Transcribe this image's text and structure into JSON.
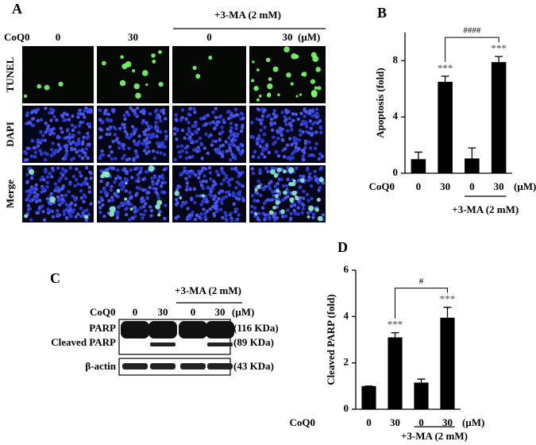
{
  "panel_a": {
    "label": "A",
    "dose_label": "CoQ0",
    "doses": [
      "0",
      "30",
      "0",
      "30"
    ],
    "unit": "(μM)",
    "treatment": "+3-MA (2 mM)",
    "rows": [
      "TUNEL",
      "DAPI",
      "Merge"
    ]
  },
  "panel_c": {
    "label": "C",
    "dose_label": "CoQ0",
    "doses": [
      "0",
      "30",
      "0",
      "30"
    ],
    "unit": "(μM)",
    "treatment": "+3-MA (2 mM)",
    "bands": [
      {
        "name": "PARP",
        "size": "(116 KDa)"
      },
      {
        "name": "Cleaved PARP",
        "size": "(89 KDa)"
      },
      {
        "name": "β-actin",
        "size": "(43 KDa)"
      }
    ]
  },
  "chart_data": [
    {
      "type": "bar",
      "panel": "B",
      "ylabel": "Apoptosis (fold)",
      "x_prefix": "CoQ0",
      "x_unit": "(μM)",
      "categories": [
        "0",
        "30",
        "0",
        "30"
      ],
      "values": [
        1.0,
        6.5,
        1.05,
        7.9
      ],
      "errors": [
        0.5,
        0.4,
        0.75,
        0.4
      ],
      "color": "#000000",
      "ylim": [
        0,
        10
      ],
      "yticks": [
        0,
        4,
        8
      ],
      "annotations": [
        {
          "index": 1,
          "text": "***"
        },
        {
          "index": 3,
          "text": "***"
        }
      ],
      "bracket": {
        "from": 1,
        "to": 3,
        "text": "####"
      },
      "group": {
        "label": "+3-MA (2 mM)",
        "from": 2,
        "to": 3
      }
    },
    {
      "type": "bar",
      "panel": "D",
      "ylabel": "Cleaved PARP (fold)",
      "x_prefix": "CoQ0",
      "x_unit": "(μM)",
      "categories": [
        "0",
        "30",
        "0",
        "30"
      ],
      "values": [
        1.0,
        3.1,
        1.15,
        3.95
      ],
      "errors": [
        0,
        0.2,
        0.15,
        0.45
      ],
      "color": "#000000",
      "ylim": [
        0,
        6
      ],
      "yticks": [
        0,
        2,
        4,
        6
      ],
      "annotations": [
        {
          "index": 1,
          "text": "***"
        },
        {
          "index": 3,
          "text": "***"
        }
      ],
      "bracket": {
        "from": 1,
        "to": 3,
        "text": "#"
      },
      "group": {
        "label": "+3-MA (2 mM)",
        "from": 2,
        "to": 3
      }
    }
  ]
}
